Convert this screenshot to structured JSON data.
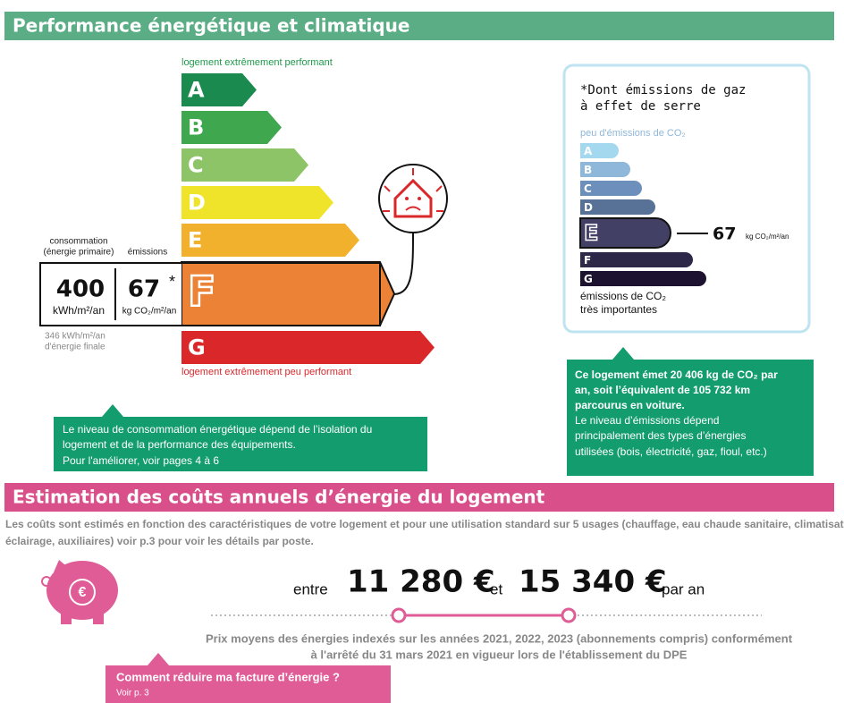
{
  "performance": {
    "title": "Performance énergétique et climatique",
    "energy_scale": {
      "top_label": "logement extrêmement performant",
      "bottom_label": "logement extrêmement peu performant",
      "classes": [
        "A",
        "B",
        "C",
        "D",
        "E",
        "F",
        "G"
      ]
    },
    "consumption": {
      "label_lines": [
        "consommation",
        "(énergie primaire)"
      ],
      "value": "400",
      "unit": "kWh/m²/an",
      "final_value": "346 kWh/m²/an",
      "final_label": "d'énergie finale"
    },
    "emissions": {
      "label": "émissions",
      "value": "67",
      "asterisk": "*",
      "unit": "kg CO₂/m²/an"
    },
    "ges_box": {
      "note_lines": [
        "*Dont émissions de gaz",
        "à effet de serre"
      ],
      "top_label": "peu d'émissions de CO₂",
      "classes": [
        "A",
        "B",
        "C",
        "D",
        "E",
        "F",
        "G"
      ],
      "value": "67",
      "unit": "kg CO₂/m²/an",
      "bottom_lines": [
        "émissions de CO₂",
        "très importantes"
      ]
    },
    "callout_left": {
      "lines": [
        "Le niveau de consommation énergétique dépend de l’isolation du",
        "logement et de la performance des équipements.",
        "Pour l'améliorer, voir pages 4 à 6"
      ]
    },
    "callout_right": {
      "bold_lines": [
        "Ce logement émet 20 406 kg de CO₂ par",
        "an, soit l’équivalent de 105 732 km",
        "parcourus en voiture."
      ],
      "lines": [
        "Le niveau d’émissions dépend",
        "principalement des types d’énergies",
        "utilisées (bois, électricité, gaz, fioul, etc.)"
      ]
    }
  },
  "costs": {
    "title": "Estimation des coûts annuels d’énergie du logement",
    "description_lines": [
      "Les coûts sont estimés en fonction des caractéristiques de votre logement et pour une utilisation standard sur 5 usages (chauffage, eau chaude sanitaire, climatisation,",
      "éclairage, auxiliaires) voir p.3 pour voir les détails par poste."
    ],
    "between": "entre",
    "low": "11 280 €",
    "and": "et",
    "high": "15 340 €",
    "per_year": "par an",
    "note_lines": [
      "Prix moyens des énergies indexés sur les années 2021, 2022, 2023 (abonnements compris) conformément",
      "à l'arrêté du 31 mars 2021 en vigueur lors de l'établissement du DPE"
    ],
    "button": "Comment réduire ma facture d’énergie ?",
    "button_sub": "Voir p. 3"
  }
}
